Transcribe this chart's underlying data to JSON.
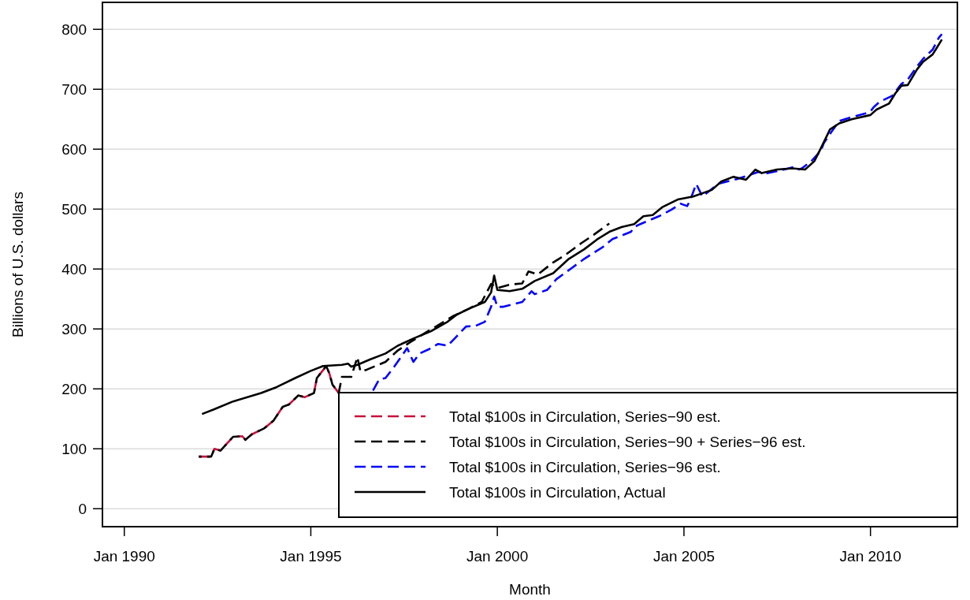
{
  "chart_data": {
    "type": "line",
    "xlabel": "Month",
    "ylabel": "Billions of U.S. dollars",
    "xlim": [
      "1989-06",
      "2012-05"
    ],
    "ylim": [
      -30,
      845
    ],
    "xticks": [
      {
        "value": "1990-01",
        "label": "Jan 1990"
      },
      {
        "value": "1995-01",
        "label": "Jan 1995"
      },
      {
        "value": "2000-01",
        "label": "Jan 2000"
      },
      {
        "value": "2005-01",
        "label": "Jan 2005"
      },
      {
        "value": "2010-01",
        "label": "Jan 2010"
      }
    ],
    "yticks": [
      0,
      100,
      200,
      300,
      400,
      500,
      600,
      700,
      800
    ],
    "grid": "y",
    "legend": "bottom right",
    "series": [
      {
        "name": "Total $100s in Circulation, Series−90 est.",
        "color": "#c8103c",
        "line_style": "dashed",
        "x": [
          "1992-01",
          "1992-05",
          "1992-06",
          "1992-08",
          "1992-12",
          "1993-03",
          "1993-04",
          "1993-06",
          "1993-10",
          "1994-01",
          "1994-04",
          "1994-06",
          "1994-09",
          "1994-11",
          "1995-02",
          "1995-03",
          "1995-06",
          "1995-07",
          "1995-08",
          "1995-10"
        ],
        "values": [
          87,
          87,
          100,
          97,
          120,
          121,
          115,
          124,
          134,
          147,
          170,
          174,
          189,
          186,
          193,
          218,
          238,
          226,
          207,
          193
        ]
      },
      {
        "name": "Total $100s in Circulation, Series−90 + Series−96 est.",
        "color": "#000000",
        "line_style": "dashed",
        "x": [
          "1992-01",
          "1992-05",
          "1992-06",
          "1992-08",
          "1992-12",
          "1993-03",
          "1993-04",
          "1993-06",
          "1993-10",
          "1994-01",
          "1994-04",
          "1994-06",
          "1994-09",
          "1994-11",
          "1995-02",
          "1995-03",
          "1995-06",
          "1995-07",
          "1995-08",
          "1995-10",
          "1995-11",
          "1996-02",
          "1996-04",
          "1996-05",
          "1996-07",
          "1997-01",
          "1997-05",
          "1997-09",
          "1998-03",
          "1998-11",
          "1999-04",
          "1999-08",
          "1999-11",
          "2000-01",
          "2000-05",
          "2000-09",
          "2000-11",
          "2001-02",
          "2001-07",
          "2001-11",
          "2002-04",
          "2002-08",
          "2003-01"
        ],
        "values": [
          87,
          87,
          100,
          97,
          120,
          121,
          115,
          124,
          134,
          147,
          170,
          174,
          189,
          186,
          193,
          218,
          238,
          226,
          207,
          193,
          220,
          220,
          253,
          229,
          232,
          245,
          264,
          278,
          297,
          322,
          334,
          345,
          375,
          368,
          374,
          376,
          396,
          391,
          411,
          424,
          443,
          457,
          476
        ]
      },
      {
        "name": "Total $100s in Circulation, Series−96 est.",
        "color": "#0000ff",
        "line_style": "dashed",
        "x": [
          "1996-09",
          "1996-11",
          "1997-01",
          "1997-04",
          "1997-08",
          "1997-10",
          "1997-12",
          "1998-03",
          "1998-06",
          "1998-09",
          "1998-12",
          "1999-03",
          "1999-06",
          "1999-09",
          "1999-11",
          "1999-12",
          "2000-01",
          "2000-03",
          "2000-06",
          "2000-09",
          "2000-12",
          "2001-01",
          "2001-05",
          "2001-08",
          "2002-01",
          "2002-05",
          "2002-11",
          "2003-02",
          "2003-08",
          "2003-09",
          "2003-11",
          "2004-05",
          "2004-09",
          "2004-12",
          "2005-02",
          "2005-03",
          "2005-05",
          "2005-07",
          "2005-12",
          "2006-06",
          "2007-01",
          "2007-04",
          "2007-10",
          "2008-01",
          "2008-02",
          "2008-03",
          "2008-06",
          "2008-09",
          "2008-10",
          "2009-01",
          "2009-03",
          "2009-06",
          "2009-11",
          "2010-01",
          "2010-02",
          "2010-04",
          "2010-08",
          "2010-11",
          "2011-01",
          "2011-04",
          "2011-06",
          "2011-09",
          "2011-11",
          "2011-12"
        ],
        "values": [
          197,
          216,
          218,
          238,
          268,
          245,
          259,
          266,
          275,
          272,
          288,
          304,
          305,
          312,
          337,
          354,
          337,
          337,
          341,
          345,
          363,
          358,
          365,
          383,
          402,
          417,
          437,
          450,
          462,
          470,
          475,
          488,
          499,
          509,
          505,
          514,
          542,
          521,
          542,
          550,
          562,
          560,
          567,
          571,
          566,
          568,
          580,
          597,
          610,
          633,
          647,
          652,
          659,
          663,
          670,
          679,
          689,
          709,
          716,
          738,
          751,
          766,
          786,
          792
        ]
      },
      {
        "name": "Total $100s in Circulation, Actual",
        "color": "#000000",
        "line_style": "solid",
        "x": [
          "1992-02",
          "1992-06",
          "1992-12",
          "1993-09",
          "1994-02",
          "1994-08",
          "1995-01",
          "1995-05",
          "1995-11",
          "1996-01",
          "1996-02",
          "1996-04",
          "1996-08",
          "1997-01",
          "1997-05",
          "1997-10",
          "1998-04",
          "1998-09",
          "1998-12",
          "1999-04",
          "1999-09",
          "1999-11",
          "1999-12",
          "2000-01",
          "2000-05",
          "2000-09",
          "2001-01",
          "2001-07",
          "2001-12",
          "2002-05",
          "2002-09",
          "2003-01",
          "2003-05",
          "2003-09",
          "2003-12",
          "2004-03",
          "2004-06",
          "2004-11",
          "2005-04",
          "2005-10",
          "2006-01",
          "2006-05",
          "2006-09",
          "2006-12",
          "2007-02",
          "2007-07",
          "2007-12",
          "2008-04",
          "2008-07",
          "2008-09",
          "2008-12",
          "2009-03",
          "2009-07",
          "2010-01",
          "2010-03",
          "2010-07",
          "2010-09",
          "2010-11",
          "2011-01",
          "2011-04",
          "2011-06",
          "2011-09",
          "2011-10",
          "2011-12"
        ],
        "values": [
          158,
          166,
          179,
          193,
          203,
          218,
          230,
          238,
          240,
          242,
          237,
          240,
          249,
          259,
          272,
          284,
          297,
          312,
          324,
          334,
          345,
          361,
          389,
          365,
          363,
          367,
          380,
          393,
          417,
          433,
          449,
          462,
          470,
          475,
          488,
          490,
          503,
          516,
          521,
          532,
          546,
          554,
          549,
          566,
          560,
          566,
          568,
          566,
          580,
          601,
          633,
          643,
          650,
          657,
          666,
          676,
          693,
          706,
          707,
          733,
          746,
          758,
          766,
          783
        ]
      }
    ]
  }
}
